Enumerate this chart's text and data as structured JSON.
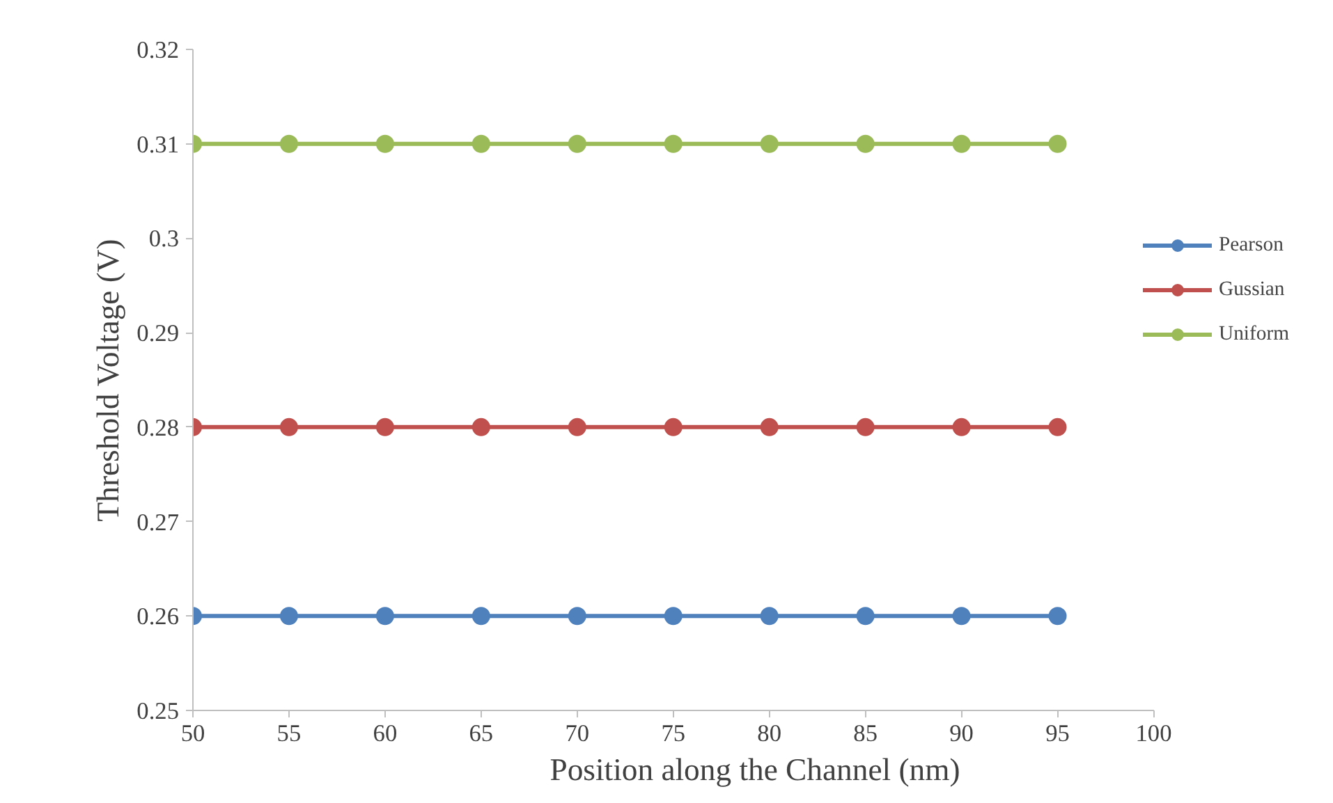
{
  "chart_data": {
    "type": "line",
    "xlabel": "Position along the Channel (nm)",
    "ylabel": "Threshold Voltage (V)",
    "x": [
      50,
      55,
      60,
      65,
      70,
      75,
      80,
      85,
      90,
      95
    ],
    "series": [
      {
        "name": "Pearson",
        "color": "#4f81bd",
        "values": [
          0.26,
          0.26,
          0.26,
          0.26,
          0.26,
          0.26,
          0.26,
          0.26,
          0.26,
          0.26
        ]
      },
      {
        "name": "Gussian",
        "color": "#c0504d",
        "values": [
          0.28,
          0.28,
          0.28,
          0.28,
          0.28,
          0.28,
          0.28,
          0.28,
          0.28,
          0.28
        ]
      },
      {
        "name": "Uniform",
        "color": "#9bbb59",
        "values": [
          0.31,
          0.31,
          0.31,
          0.31,
          0.31,
          0.31,
          0.31,
          0.31,
          0.31,
          0.31
        ]
      }
    ],
    "xlim": [
      50,
      100
    ],
    "xticks": [
      50,
      55,
      60,
      65,
      70,
      75,
      80,
      85,
      90,
      95,
      100
    ],
    "ylim": [
      0.25,
      0.32
    ],
    "yticks": [
      0.25,
      0.26,
      0.27,
      0.28,
      0.29,
      0.3,
      0.31,
      0.32
    ],
    "grid": false,
    "legend": "right",
    "marker": "circle",
    "line_style": "solid"
  }
}
